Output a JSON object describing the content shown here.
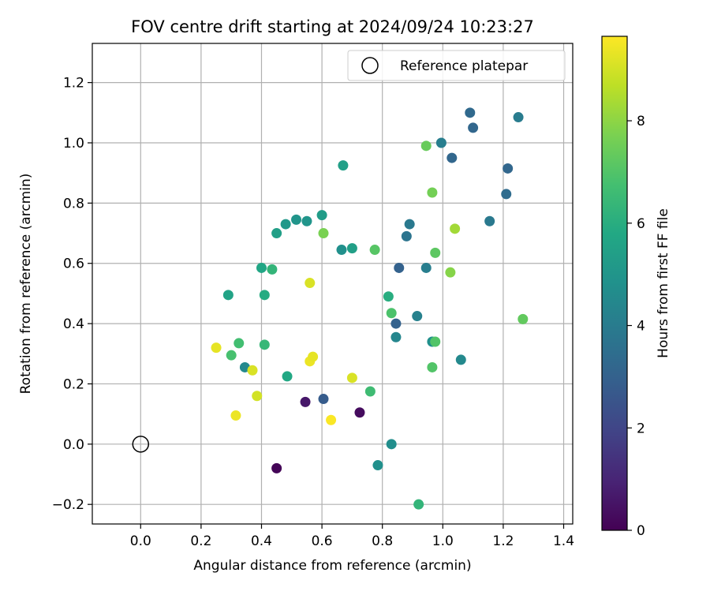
{
  "chart_data": {
    "type": "scatter",
    "title": "FOV centre drift starting at 2024/09/24 10:23:27",
    "xlabel": "Angular distance from reference (arcmin)",
    "ylabel": "Rotation from reference (arcmin)",
    "xlim": [
      -0.16,
      1.43
    ],
    "ylim": [
      -0.265,
      1.33
    ],
    "xticks": [
      0.0,
      0.2,
      0.4,
      0.6,
      0.8,
      1.0,
      1.2,
      1.4
    ],
    "xtick_labels": [
      "0.0",
      "0.2",
      "0.4",
      "0.6",
      "0.8",
      "1.0",
      "1.2",
      "1.4"
    ],
    "yticks": [
      -0.2,
      0.0,
      0.2,
      0.4,
      0.6,
      0.8,
      1.0,
      1.2
    ],
    "ytick_labels": [
      "−0.2",
      "0.0",
      "0.2",
      "0.4",
      "0.6",
      "0.8",
      "1.0",
      "1.2"
    ],
    "grid": true,
    "legend": {
      "position": "top-right",
      "entries": [
        "Reference platepar"
      ]
    },
    "reference_point": {
      "label": "Reference platepar",
      "x": 0.0,
      "y": 0.0,
      "marker": "open-circle"
    },
    "colorbar": {
      "label": "Hours from first FF file",
      "colormap": "viridis",
      "range": [
        0,
        9.65
      ],
      "ticks": [
        0,
        2,
        4,
        6,
        8
      ],
      "tick_labels": [
        "0",
        "2",
        "4",
        "6",
        "8"
      ]
    },
    "points": [
      {
        "x": 0.45,
        "y": -0.08,
        "hours": 0.1
      },
      {
        "x": 0.725,
        "y": 0.105,
        "hours": 0.3
      },
      {
        "x": 0.545,
        "y": 0.14,
        "hours": 0.6
      },
      {
        "x": 0.605,
        "y": 0.15,
        "hours": 2.8
      },
      {
        "x": 0.845,
        "y": 0.4,
        "hours": 3.0
      },
      {
        "x": 0.855,
        "y": 0.585,
        "hours": 3.0
      },
      {
        "x": 1.09,
        "y": 1.1,
        "hours": 3.3
      },
      {
        "x": 1.1,
        "y": 1.05,
        "hours": 3.2
      },
      {
        "x": 1.03,
        "y": 0.95,
        "hours": 3.2
      },
      {
        "x": 1.215,
        "y": 0.915,
        "hours": 3.2
      },
      {
        "x": 1.21,
        "y": 0.83,
        "hours": 3.4
      },
      {
        "x": 0.88,
        "y": 0.69,
        "hours": 3.7
      },
      {
        "x": 1.155,
        "y": 0.74,
        "hours": 3.9
      },
      {
        "x": 1.25,
        "y": 1.085,
        "hours": 4.0
      },
      {
        "x": 0.995,
        "y": 1.0,
        "hours": 4.1
      },
      {
        "x": 0.89,
        "y": 0.73,
        "hours": 3.9
      },
      {
        "x": 0.945,
        "y": 0.585,
        "hours": 4.1
      },
      {
        "x": 0.915,
        "y": 0.425,
        "hours": 4.2
      },
      {
        "x": 0.845,
        "y": 0.355,
        "hours": 4.4
      },
      {
        "x": 1.06,
        "y": 0.28,
        "hours": 4.5
      },
      {
        "x": 0.965,
        "y": 0.34,
        "hours": 4.8
      },
      {
        "x": 0.83,
        "y": 0.0,
        "hours": 4.7
      },
      {
        "x": 0.785,
        "y": -0.07,
        "hours": 4.8
      },
      {
        "x": 0.345,
        "y": 0.255,
        "hours": 4.5
      },
      {
        "x": 0.665,
        "y": 0.645,
        "hours": 4.8
      },
      {
        "x": 0.55,
        "y": 0.74,
        "hours": 5.0
      },
      {
        "x": 0.515,
        "y": 0.745,
        "hours": 5.0
      },
      {
        "x": 0.48,
        "y": 0.73,
        "hours": 5.1
      },
      {
        "x": 0.6,
        "y": 0.76,
        "hours": 5.3
      },
      {
        "x": 0.45,
        "y": 0.7,
        "hours": 5.4
      },
      {
        "x": 0.7,
        "y": 0.65,
        "hours": 5.4
      },
      {
        "x": 0.67,
        "y": 0.925,
        "hours": 5.4
      },
      {
        "x": 0.4,
        "y": 0.585,
        "hours": 5.7
      },
      {
        "x": 0.29,
        "y": 0.495,
        "hours": 5.6
      },
      {
        "x": 0.41,
        "y": 0.495,
        "hours": 5.9
      },
      {
        "x": 0.485,
        "y": 0.225,
        "hours": 5.8
      },
      {
        "x": 0.82,
        "y": 0.49,
        "hours": 6.0
      },
      {
        "x": 0.92,
        "y": -0.2,
        "hours": 6.3
      },
      {
        "x": 0.435,
        "y": 0.58,
        "hours": 6.3
      },
      {
        "x": 0.41,
        "y": 0.33,
        "hours": 6.4
      },
      {
        "x": 0.76,
        "y": 0.175,
        "hours": 6.6
      },
      {
        "x": 0.325,
        "y": 0.335,
        "hours": 6.7
      },
      {
        "x": 0.3,
        "y": 0.295,
        "hours": 6.8
      },
      {
        "x": 0.83,
        "y": 0.435,
        "hours": 6.9
      },
      {
        "x": 0.975,
        "y": 0.34,
        "hours": 7.0
      },
      {
        "x": 0.965,
        "y": 0.255,
        "hours": 7.0
      },
      {
        "x": 0.775,
        "y": 0.645,
        "hours": 7.1
      },
      {
        "x": 0.975,
        "y": 0.635,
        "hours": 7.2
      },
      {
        "x": 0.945,
        "y": 0.99,
        "hours": 7.4
      },
      {
        "x": 0.965,
        "y": 0.835,
        "hours": 7.6
      },
      {
        "x": 1.265,
        "y": 0.415,
        "hours": 7.3
      },
      {
        "x": 0.605,
        "y": 0.7,
        "hours": 7.7
      },
      {
        "x": 1.025,
        "y": 0.57,
        "hours": 7.9
      },
      {
        "x": 1.04,
        "y": 0.715,
        "hours": 8.3
      },
      {
        "x": 0.7,
        "y": 0.22,
        "hours": 9.1
      },
      {
        "x": 0.37,
        "y": 0.245,
        "hours": 9.1
      },
      {
        "x": 0.385,
        "y": 0.16,
        "hours": 9.0
      },
      {
        "x": 0.56,
        "y": 0.535,
        "hours": 9.1
      },
      {
        "x": 0.56,
        "y": 0.275,
        "hours": 9.4
      },
      {
        "x": 0.57,
        "y": 0.29,
        "hours": 9.3
      },
      {
        "x": 0.25,
        "y": 0.32,
        "hours": 9.3
      },
      {
        "x": 0.315,
        "y": 0.095,
        "hours": 9.4
      },
      {
        "x": 0.63,
        "y": 0.08,
        "hours": 9.6
      }
    ]
  }
}
